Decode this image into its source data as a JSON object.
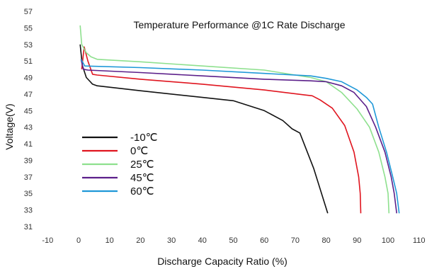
{
  "chart_data": {
    "type": "line",
    "title": "Temperature Performance @1C Rate Discharge",
    "xlabel": "Discharge Capacity Ratio (%)",
    "ylabel": "Voltage(V)",
    "xlim": [
      -10,
      110
    ],
    "ylim": [
      31,
      57
    ],
    "xticks": [
      -10,
      0,
      10,
      20,
      30,
      40,
      50,
      60,
      70,
      80,
      90,
      100,
      110
    ],
    "yticks": [
      31,
      33,
      35,
      37,
      39,
      41,
      43,
      45,
      47,
      49,
      51,
      53,
      55,
      57
    ],
    "legend_position": "left-center",
    "grid": false,
    "series": [
      {
        "name": "-10℃",
        "color": "#111111",
        "points": [
          [
            0.5,
            53.0
          ],
          [
            1.2,
            50.5
          ],
          [
            2.5,
            49.0
          ],
          [
            4.5,
            48.2
          ],
          [
            6,
            48.0
          ],
          [
            20,
            47.4
          ],
          [
            40,
            46.6
          ],
          [
            50,
            46.2
          ],
          [
            60,
            45.0
          ],
          [
            66,
            43.8
          ],
          [
            69,
            42.8
          ],
          [
            71.5,
            42.3
          ],
          [
            76,
            38.0
          ],
          [
            80.5,
            32.6
          ]
        ]
      },
      {
        "name": "0℃",
        "color": "#e0151f",
        "points": [
          [
            1,
            50.0
          ],
          [
            1.8,
            52.7
          ],
          [
            3,
            51.0
          ],
          [
            4.5,
            49.4
          ],
          [
            6,
            49.3
          ],
          [
            20,
            48.8
          ],
          [
            40,
            48.2
          ],
          [
            60,
            47.5
          ],
          [
            73,
            46.9
          ],
          [
            75.5,
            46.8
          ],
          [
            78,
            46.3
          ],
          [
            82,
            45.3
          ],
          [
            86,
            43.2
          ],
          [
            89,
            40.0
          ],
          [
            90.5,
            37.0
          ],
          [
            91,
            35.0
          ],
          [
            91.2,
            32.6
          ]
        ]
      },
      {
        "name": "25℃",
        "color": "#8ee08e",
        "points": [
          [
            0.5,
            55.3
          ],
          [
            1,
            53.0
          ],
          [
            2.5,
            52.0
          ],
          [
            4,
            51.5
          ],
          [
            6,
            51.2
          ],
          [
            20,
            50.9
          ],
          [
            40,
            50.4
          ],
          [
            60,
            49.9
          ],
          [
            75,
            49.0
          ],
          [
            80,
            48.5
          ],
          [
            85,
            47.2
          ],
          [
            90,
            45.2
          ],
          [
            94,
            43.0
          ],
          [
            97,
            40.0
          ],
          [
            99,
            37.0
          ],
          [
            100,
            35.0
          ],
          [
            100.3,
            32.6
          ]
        ]
      },
      {
        "name": "45℃",
        "color": "#5b1f8a",
        "points": [
          [
            0.8,
            51.2
          ],
          [
            1.5,
            50.0
          ],
          [
            3,
            49.9
          ],
          [
            20,
            49.6
          ],
          [
            40,
            49.2
          ],
          [
            60,
            48.8
          ],
          [
            75,
            48.6
          ],
          [
            80,
            48.5
          ],
          [
            85,
            48.0
          ],
          [
            89,
            47.2
          ],
          [
            93,
            45.5
          ],
          [
            96,
            43.0
          ],
          [
            99,
            40.0
          ],
          [
            101,
            37.0
          ],
          [
            102,
            35.0
          ],
          [
            102.8,
            32.6
          ]
        ]
      },
      {
        "name": "60℃",
        "color": "#1f98d8",
        "points": [
          [
            0.8,
            51.2
          ],
          [
            2,
            50.4
          ],
          [
            20,
            50.2
          ],
          [
            40,
            49.9
          ],
          [
            60,
            49.5
          ],
          [
            75,
            49.2
          ],
          [
            80,
            48.9
          ],
          [
            85,
            48.5
          ],
          [
            90,
            47.5
          ],
          [
            93,
            46.6
          ],
          [
            95,
            45.8
          ],
          [
            97,
            43.0
          ],
          [
            99.5,
            40.0
          ],
          [
            101.5,
            37.0
          ],
          [
            102.8,
            35.0
          ],
          [
            103.6,
            32.6
          ]
        ]
      }
    ]
  }
}
